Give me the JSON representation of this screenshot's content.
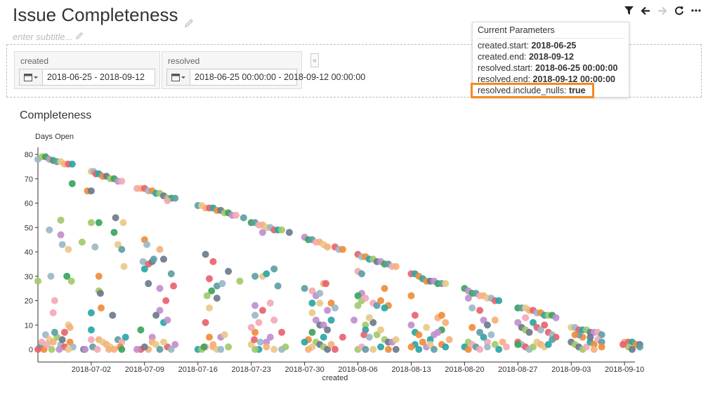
{
  "header": {
    "title": "Issue Completeness",
    "subtitle_placeholder": "enter subtitle..."
  },
  "toolbar": {
    "icons": [
      "filter-icon",
      "back-arrow-icon",
      "forward-arrow-icon",
      "refresh-icon",
      "more-icon"
    ]
  },
  "filters": {
    "created": {
      "label": "created",
      "value": "2018-06-25 - 2018-09-12"
    },
    "resolved": {
      "label": "resolved",
      "value": "2018-06-25 00:00:00 - 2018-09-12 00:00:00"
    },
    "collapse_label": "«"
  },
  "params_popup": {
    "title": "Current Parameters",
    "lines": [
      {
        "key": "created.start:",
        "value": "2018-06-25"
      },
      {
        "key": "created.end:",
        "value": "2018-09-12"
      },
      {
        "key": "resolved.start:",
        "value": "2018-06-25 00:00:00"
      },
      {
        "key": "resolved.end:",
        "value": "2018-09-12 00:00:00"
      },
      {
        "key": "resolved.include_nulls:",
        "value": "true"
      }
    ],
    "highlight_color": "#f48a1f"
  },
  "chart_data": {
    "type": "scatter",
    "title": "Completeness",
    "xlabel": "created",
    "ylabel": "Days Open",
    "x_ticks": [
      "2018-07-02",
      "2018-07-09",
      "2018-07-16",
      "2018-07-23",
      "2018-07-30",
      "2018-08-06",
      "2018-08-13",
      "2018-08-20",
      "2018-08-27",
      "2018-09-03",
      "2018-09-10"
    ],
    "y_ticks": [
      0,
      10,
      20,
      30,
      40,
      50,
      60,
      70,
      80
    ],
    "ylim": [
      0,
      82
    ],
    "xlim": [
      "2018-06-25",
      "2018-09-11"
    ],
    "grid": false,
    "palette": [
      "#e8636f",
      "#f08c3a",
      "#a3c96b",
      "#c08fcf",
      "#5f9ea6",
      "#f6b07a",
      "#9bb8c7",
      "#2aa6a6",
      "#6b7b8c",
      "#3da35d",
      "#f3a9b5",
      "#e8c98a"
    ],
    "points": [
      [
        0,
        78
      ],
      [
        0.5,
        79
      ],
      [
        1,
        79
      ],
      [
        1.5,
        78
      ],
      [
        2,
        77.5
      ],
      [
        2.5,
        77
      ],
      [
        3,
        77
      ],
      [
        3.5,
        76
      ],
      [
        4,
        76
      ],
      [
        4.5,
        76
      ],
      [
        0,
        28
      ],
      [
        1.5,
        49
      ],
      [
        1.7,
        30
      ],
      [
        2,
        15
      ],
      [
        2.2,
        20
      ],
      [
        3,
        53
      ],
      [
        3,
        47
      ],
      [
        3.2,
        43
      ],
      [
        4,
        41
      ],
      [
        4,
        10
      ],
      [
        4.2,
        9
      ],
      [
        3.8,
        30
      ],
      [
        4.4,
        28
      ],
      [
        3.5,
        7
      ],
      [
        1,
        6
      ],
      [
        1.5,
        4
      ],
      [
        2,
        3
      ],
      [
        2.5,
        5
      ],
      [
        3,
        2
      ],
      [
        3.5,
        1
      ],
      [
        0.3,
        1
      ],
      [
        0.8,
        0
      ],
      [
        1.2,
        2
      ],
      [
        2.8,
        0
      ],
      [
        4.2,
        3
      ],
      [
        4.6,
        1
      ],
      [
        0,
        0
      ],
      [
        0.5,
        3
      ],
      [
        1.8,
        0
      ],
      [
        2.2,
        7
      ],
      [
        3.2,
        4
      ],
      [
        4,
        0
      ],
      [
        5.8,
        44
      ],
      [
        4.5,
        68
      ],
      [
        6,
        0
      ],
      [
        6.2,
        0
      ],
      [
        7,
        73
      ],
      [
        7.3,
        73
      ],
      [
        7.6,
        72
      ],
      [
        8,
        72
      ],
      [
        8.5,
        71
      ],
      [
        9,
        71
      ],
      [
        9.5,
        70
      ],
      [
        10,
        70
      ],
      [
        10.5,
        69
      ],
      [
        11,
        69
      ],
      [
        6.5,
        65
      ],
      [
        7,
        65
      ],
      [
        7,
        52
      ],
      [
        8,
        52
      ],
      [
        7.5,
        42
      ],
      [
        8,
        30
      ],
      [
        8,
        24
      ],
      [
        8.2,
        23
      ],
      [
        7,
        15
      ],
      [
        7,
        8
      ],
      [
        7,
        4
      ],
      [
        8,
        4
      ],
      [
        8.5,
        3
      ],
      [
        9,
        2
      ],
      [
        9.5,
        1
      ],
      [
        10,
        0
      ],
      [
        10.5,
        4
      ],
      [
        11,
        3
      ],
      [
        11.5,
        5
      ],
      [
        10,
        48
      ],
      [
        10.5,
        43
      ],
      [
        11,
        41
      ],
      [
        9.8,
        14
      ],
      [
        11.3,
        34
      ],
      [
        8.3,
        17
      ],
      [
        7.2,
        1
      ],
      [
        7.8,
        0
      ],
      [
        9.3,
        0
      ],
      [
        10.8,
        1
      ],
      [
        11.2,
        52
      ],
      [
        10.2,
        54
      ],
      [
        11,
        0
      ],
      [
        13,
        66
      ],
      [
        13.5,
        66
      ],
      [
        14,
        66
      ],
      [
        14.5,
        65
      ],
      [
        15,
        65
      ],
      [
        15.5,
        64
      ],
      [
        16,
        64
      ],
      [
        16.5,
        63
      ],
      [
        17,
        62
      ],
      [
        17.5,
        62
      ],
      [
        18,
        62
      ],
      [
        17,
        61
      ],
      [
        14,
        45
      ],
      [
        14.3,
        43
      ],
      [
        13.8,
        36
      ],
      [
        14.5,
        35
      ],
      [
        15,
        36
      ],
      [
        15.2,
        37
      ],
      [
        14,
        33
      ],
      [
        14.5,
        27
      ],
      [
        16,
        41
      ],
      [
        16.5,
        37
      ],
      [
        16,
        25
      ],
      [
        17.5,
        31
      ],
      [
        16.8,
        20
      ],
      [
        16,
        16
      ],
      [
        15.5,
        14
      ],
      [
        13.5,
        8
      ],
      [
        16.5,
        11
      ],
      [
        17,
        12
      ],
      [
        15,
        5
      ],
      [
        14.5,
        0
      ],
      [
        13.5,
        0
      ],
      [
        14,
        1
      ],
      [
        15,
        3
      ],
      [
        15.5,
        2
      ],
      [
        16,
        0
      ],
      [
        17,
        1
      ],
      [
        17.5,
        0
      ],
      [
        18,
        2
      ],
      [
        16.5,
        3
      ],
      [
        13,
        0
      ],
      [
        17.8,
        26
      ],
      [
        21,
        59
      ],
      [
        21.5,
        59
      ],
      [
        22,
        58
      ],
      [
        22.5,
        58
      ],
      [
        23,
        58
      ],
      [
        23.5,
        57
      ],
      [
        24,
        57
      ],
      [
        24.5,
        56
      ],
      [
        25,
        56
      ],
      [
        25.5,
        55
      ],
      [
        26,
        55
      ],
      [
        27,
        54
      ],
      [
        22,
        39
      ],
      [
        23,
        36
      ],
      [
        22.5,
        29
      ],
      [
        23.5,
        26
      ],
      [
        22.8,
        24
      ],
      [
        22.2,
        22
      ],
      [
        23.5,
        21
      ],
      [
        22.5,
        17
      ],
      [
        22,
        11
      ],
      [
        22.5,
        5
      ],
      [
        23,
        2
      ],
      [
        24,
        5
      ],
      [
        24.5,
        6
      ],
      [
        25,
        32
      ],
      [
        21,
        0
      ],
      [
        21.5,
        0
      ],
      [
        22,
        1
      ],
      [
        23,
        1
      ],
      [
        23.5,
        0
      ],
      [
        24,
        0
      ],
      [
        25,
        1
      ],
      [
        21.8,
        1
      ],
      [
        24.2,
        27
      ],
      [
        26.5,
        28
      ],
      [
        28,
        52
      ],
      [
        28.5,
        52
      ],
      [
        29,
        51
      ],
      [
        29.5,
        51
      ],
      [
        30,
        50
      ],
      [
        30.5,
        50
      ],
      [
        31,
        49
      ],
      [
        31.5,
        49
      ],
      [
        32,
        49
      ],
      [
        33,
        48
      ],
      [
        29.5,
        48
      ],
      [
        28.5,
        30
      ],
      [
        29.5,
        30
      ],
      [
        30,
        31
      ],
      [
        31,
        33
      ],
      [
        31.5,
        26
      ],
      [
        28.5,
        18
      ],
      [
        28.5,
        14
      ],
      [
        29,
        11
      ],
      [
        28.5,
        7
      ],
      [
        28,
        9
      ],
      [
        29.5,
        16
      ],
      [
        30.5,
        19
      ],
      [
        31,
        12
      ],
      [
        32,
        7
      ],
      [
        30,
        3
      ],
      [
        29,
        0
      ],
      [
        28.5,
        0
      ],
      [
        28,
        2
      ],
      [
        30,
        1
      ],
      [
        31,
        0
      ],
      [
        32,
        0
      ],
      [
        32.5,
        1
      ],
      [
        28.4,
        4
      ],
      [
        29.2,
        3
      ],
      [
        30.5,
        5
      ],
      [
        35,
        46
      ],
      [
        35.5,
        45
      ],
      [
        36,
        45
      ],
      [
        36.5,
        44
      ],
      [
        37,
        44
      ],
      [
        37.5,
        43
      ],
      [
        38,
        42
      ],
      [
        39,
        42
      ],
      [
        39.5,
        41
      ],
      [
        40,
        41
      ],
      [
        35,
        25
      ],
      [
        36,
        24
      ],
      [
        36.5,
        22
      ],
      [
        36,
        19
      ],
      [
        37,
        23
      ],
      [
        37.5,
        27
      ],
      [
        37.8,
        27
      ],
      [
        37,
        19
      ],
      [
        38,
        16
      ],
      [
        38.5,
        19
      ],
      [
        39,
        17
      ],
      [
        36,
        15
      ],
      [
        36.5,
        12
      ],
      [
        37,
        10
      ],
      [
        37.5,
        10
      ],
      [
        38,
        8
      ],
      [
        38.5,
        12
      ],
      [
        36,
        7
      ],
      [
        35.5,
        4
      ],
      [
        35,
        3
      ],
      [
        36.5,
        3
      ],
      [
        37,
        2
      ],
      [
        37.5,
        1
      ],
      [
        38,
        0
      ],
      [
        38.5,
        2
      ],
      [
        36,
        1
      ],
      [
        35.5,
        0
      ],
      [
        39,
        0
      ],
      [
        40,
        5
      ],
      [
        37.5,
        5
      ],
      [
        42,
        39
      ],
      [
        42.5,
        38
      ],
      [
        43,
        38
      ],
      [
        43.5,
        37
      ],
      [
        44,
        37
      ],
      [
        44.5,
        36
      ],
      [
        45,
        36
      ],
      [
        45.5,
        35
      ],
      [
        46,
        35
      ],
      [
        46.5,
        34
      ],
      [
        47,
        34
      ],
      [
        42,
        32
      ],
      [
        42.5,
        31
      ],
      [
        42.5,
        23
      ],
      [
        42,
        22
      ],
      [
        42.5,
        20
      ],
      [
        43,
        21
      ],
      [
        42,
        18
      ],
      [
        44,
        19
      ],
      [
        44.5,
        18
      ],
      [
        45,
        20
      ],
      [
        45.5,
        25
      ],
      [
        46,
        18
      ],
      [
        45.5,
        17
      ],
      [
        44,
        11
      ],
      [
        43,
        10
      ],
      [
        43,
        8
      ],
      [
        42.8,
        6
      ],
      [
        43.5,
        5
      ],
      [
        44.5,
        6
      ],
      [
        45,
        8
      ],
      [
        45.5,
        4
      ],
      [
        46,
        3
      ],
      [
        46.5,
        3
      ],
      [
        47,
        4
      ],
      [
        42,
        0
      ],
      [
        42.5,
        1
      ],
      [
        43,
        0
      ],
      [
        44,
        0
      ],
      [
        45,
        1
      ],
      [
        46,
        0
      ],
      [
        47,
        0
      ],
      [
        41.5,
        12
      ],
      [
        43.5,
        13
      ],
      [
        49,
        31
      ],
      [
        49.5,
        31
      ],
      [
        50,
        30
      ],
      [
        50.5,
        29
      ],
      [
        51,
        28
      ],
      [
        51.5,
        28
      ],
      [
        52,
        28
      ],
      [
        52.5,
        27
      ],
      [
        53,
        27
      ],
      [
        53.5,
        27
      ],
      [
        49,
        22
      ],
      [
        49.5,
        14
      ],
      [
        49,
        10
      ],
      [
        49.5,
        7
      ],
      [
        50,
        6
      ],
      [
        51,
        9
      ],
      [
        52,
        6
      ],
      [
        52.5,
        13
      ],
      [
        53,
        14
      ],
      [
        53.5,
        11
      ],
      [
        53,
        8
      ],
      [
        52.5,
        7
      ],
      [
        51.5,
        4
      ],
      [
        50.5,
        3
      ],
      [
        49.5,
        2
      ],
      [
        49,
        1
      ],
      [
        50,
        0
      ],
      [
        51,
        1
      ],
      [
        51.5,
        2
      ],
      [
        52,
        0
      ],
      [
        53,
        2
      ],
      [
        53.5,
        1
      ],
      [
        54,
        4
      ],
      [
        56,
        25
      ],
      [
        56.5,
        24
      ],
      [
        57,
        23
      ],
      [
        57.5,
        23
      ],
      [
        58,
        22
      ],
      [
        58.5,
        22
      ],
      [
        59,
        21
      ],
      [
        59.5,
        21
      ],
      [
        60,
        20
      ],
      [
        60.5,
        20
      ],
      [
        56.5,
        21
      ],
      [
        57,
        17
      ],
      [
        58,
        16
      ],
      [
        58.5,
        12
      ],
      [
        59,
        10
      ],
      [
        60,
        12
      ],
      [
        59.5,
        6
      ],
      [
        59,
        3
      ],
      [
        58.5,
        5
      ],
      [
        58,
        7
      ],
      [
        57,
        9
      ],
      [
        56.5,
        3
      ],
      [
        56,
        1
      ],
      [
        56.5,
        0
      ],
      [
        57,
        2
      ],
      [
        57.5,
        1
      ],
      [
        58,
        0
      ],
      [
        59,
        1
      ],
      [
        60,
        2
      ],
      [
        60.5,
        0
      ],
      [
        61,
        3
      ],
      [
        61.5,
        1
      ],
      [
        63,
        17
      ],
      [
        63.5,
        17
      ],
      [
        64,
        17
      ],
      [
        64.5,
        16
      ],
      [
        65,
        16
      ],
      [
        65.5,
        15
      ],
      [
        66,
        15
      ],
      [
        66.5,
        14
      ],
      [
        67,
        14
      ],
      [
        67.5,
        14
      ],
      [
        68,
        13
      ],
      [
        64,
        13
      ],
      [
        63,
        11
      ],
      [
        63.5,
        9
      ],
      [
        64,
        8
      ],
      [
        64.5,
        7
      ],
      [
        65,
        11
      ],
      [
        65.5,
        9
      ],
      [
        66,
        8
      ],
      [
        67,
        7
      ],
      [
        67.5,
        6
      ],
      [
        68,
        5
      ],
      [
        66.5,
        10
      ],
      [
        63,
        3
      ],
      [
        63.5,
        2
      ],
      [
        64,
        1
      ],
      [
        64.5,
        0
      ],
      [
        65,
        1
      ],
      [
        65.5,
        3
      ],
      [
        66,
        2
      ],
      [
        66.5,
        1
      ],
      [
        67,
        2
      ],
      [
        67.5,
        4
      ],
      [
        63,
        2
      ],
      [
        70,
        9
      ],
      [
        70.5,
        9
      ],
      [
        71,
        8
      ],
      [
        71.5,
        8
      ],
      [
        72,
        8
      ],
      [
        72.5,
        7
      ],
      [
        73,
        7
      ],
      [
        73.5,
        7
      ],
      [
        74,
        6
      ],
      [
        70,
        3
      ],
      [
        70.5,
        2
      ],
      [
        71,
        1
      ],
      [
        71.5,
        0
      ],
      [
        72,
        1
      ],
      [
        72.5,
        3
      ],
      [
        73,
        2
      ],
      [
        73.5,
        4
      ],
      [
        74,
        3
      ],
      [
        71.5,
        5
      ],
      [
        72.5,
        5
      ],
      [
        71,
        6
      ],
      [
        73,
        0
      ],
      [
        74,
        1
      ],
      [
        70.5,
        6
      ],
      [
        77,
        3
      ],
      [
        77.5,
        3
      ],
      [
        78,
        3
      ],
      [
        78.5,
        2
      ],
      [
        79,
        2
      ],
      [
        77.5,
        1
      ],
      [
        78,
        0
      ],
      [
        79,
        1
      ],
      [
        76.8,
        2
      ]
    ]
  }
}
